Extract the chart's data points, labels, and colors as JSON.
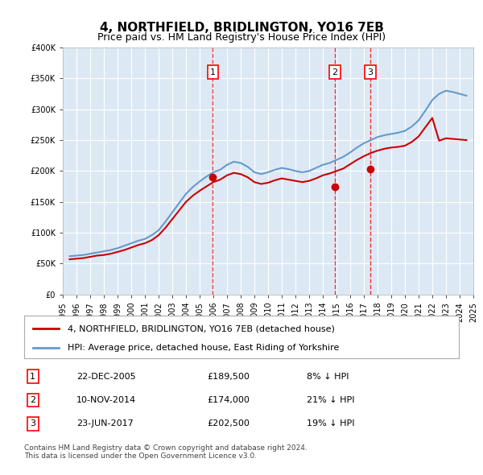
{
  "title": "4, NORTHFIELD, BRIDLINGTON, YO16 7EB",
  "subtitle": "Price paid vs. HM Land Registry's House Price Index (HPI)",
  "bg_color": "#dce9f5",
  "plot_bg_color": "#dce9f5",
  "red_line_color": "#cc0000",
  "blue_line_color": "#6699cc",
  "ylim": [
    0,
    400000
  ],
  "yticks": [
    0,
    50000,
    100000,
    150000,
    200000,
    250000,
    300000,
    350000,
    400000
  ],
  "ytick_labels": [
    "£0",
    "£50K",
    "£100K",
    "£150K",
    "£200K",
    "£250K",
    "£300K",
    "£350K",
    "£400K"
  ],
  "sales": [
    {
      "date_num": 2005.97,
      "price": 189500,
      "label": "1"
    },
    {
      "date_num": 2014.86,
      "price": 174000,
      "label": "2"
    },
    {
      "date_num": 2017.48,
      "price": 202500,
      "label": "3"
    }
  ],
  "sale_annotations": [
    {
      "label": "1",
      "date": "22-DEC-2005",
      "price": "£189,500",
      "pct": "8% ↓ HPI"
    },
    {
      "label": "2",
      "date": "10-NOV-2014",
      "price": "£174,000",
      "pct": "21% ↓ HPI"
    },
    {
      "label": "3",
      "date": "23-JUN-2017",
      "price": "£202,500",
      "pct": "19% ↓ HPI"
    }
  ],
  "legend_red": "4, NORTHFIELD, BRIDLINGTON, YO16 7EB (detached house)",
  "legend_blue": "HPI: Average price, detached house, East Riding of Yorkshire",
  "footnote": "Contains HM Land Registry data © Crown copyright and database right 2024.\nThis data is licensed under the Open Government Licence v3.0.",
  "hpi_data": {
    "years": [
      1995.5,
      1996.0,
      1996.5,
      1997.0,
      1997.5,
      1998.0,
      1998.5,
      1999.0,
      1999.5,
      2000.0,
      2000.5,
      2001.0,
      2001.5,
      2002.0,
      2002.5,
      2003.0,
      2003.5,
      2004.0,
      2004.5,
      2005.0,
      2005.5,
      2006.0,
      2006.5,
      2007.0,
      2007.5,
      2008.0,
      2008.5,
      2009.0,
      2009.5,
      2010.0,
      2010.5,
      2011.0,
      2011.5,
      2012.0,
      2012.5,
      2013.0,
      2013.5,
      2014.0,
      2014.5,
      2015.0,
      2015.5,
      2016.0,
      2016.5,
      2017.0,
      2017.5,
      2018.0,
      2018.5,
      2019.0,
      2019.5,
      2020.0,
      2020.5,
      2021.0,
      2021.5,
      2022.0,
      2022.5,
      2023.0,
      2023.5,
      2024.0,
      2024.5
    ],
    "values": [
      62000,
      63000,
      64000,
      66000,
      68000,
      70000,
      72000,
      75000,
      79000,
      83000,
      87000,
      90000,
      96000,
      104000,
      118000,
      133000,
      148000,
      163000,
      174000,
      183000,
      191000,
      198000,
      202000,
      210000,
      215000,
      213000,
      207000,
      198000,
      195000,
      198000,
      202000,
      205000,
      203000,
      200000,
      198000,
      200000,
      205000,
      210000,
      213000,
      218000,
      223000,
      230000,
      238000,
      245000,
      250000,
      255000,
      258000,
      260000,
      262000,
      265000,
      272000,
      282000,
      298000,
      315000,
      325000,
      330000,
      328000,
      325000,
      322000
    ]
  },
  "property_data": {
    "years": [
      1995.5,
      1996.0,
      1996.5,
      1997.0,
      1997.5,
      1998.0,
      1998.5,
      1999.0,
      1999.5,
      2000.0,
      2000.5,
      2001.0,
      2001.5,
      2002.0,
      2002.5,
      2003.0,
      2003.5,
      2004.0,
      2004.5,
      2005.0,
      2005.5,
      2006.0,
      2006.5,
      2007.0,
      2007.5,
      2008.0,
      2008.5,
      2009.0,
      2009.5,
      2010.0,
      2010.5,
      2011.0,
      2011.5,
      2012.0,
      2012.5,
      2013.0,
      2013.5,
      2014.0,
      2014.5,
      2015.0,
      2015.5,
      2016.0,
      2016.5,
      2017.0,
      2017.5,
      2018.0,
      2018.5,
      2019.0,
      2019.5,
      2020.0,
      2020.5,
      2021.0,
      2021.5,
      2022.0,
      2022.5,
      2023.0,
      2023.5,
      2024.0,
      2024.5
    ],
    "values": [
      57000,
      58000,
      59000,
      61000,
      63000,
      64000,
      66000,
      69000,
      72000,
      76000,
      80000,
      83000,
      88000,
      96000,
      108000,
      122000,
      136000,
      150000,
      160000,
      168000,
      175000,
      182000,
      186000,
      193000,
      197000,
      195000,
      190000,
      182000,
      179000,
      181000,
      185000,
      188000,
      186000,
      184000,
      182000,
      184000,
      188000,
      193000,
      196000,
      200000,
      204000,
      211000,
      218000,
      224000,
      229000,
      233000,
      236000,
      238000,
      239000,
      241000,
      247000,
      256000,
      271000,
      286000,
      249000,
      253000,
      252000,
      251000,
      250000
    ]
  }
}
